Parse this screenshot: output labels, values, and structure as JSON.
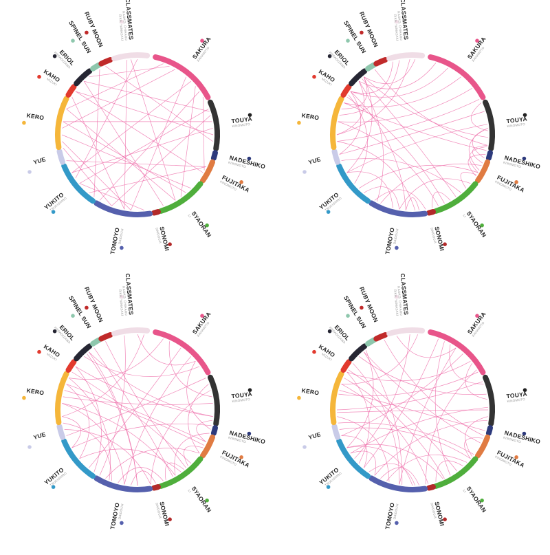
{
  "panels": [
    {
      "id": "panel-1",
      "link_style": "straight"
    },
    {
      "id": "panel-2",
      "link_style": "curved"
    },
    {
      "id": "panel-3",
      "link_style": "curved"
    },
    {
      "id": "panel-4",
      "link_style": "curved"
    }
  ],
  "link_color": "#ee6aa7",
  "characters": [
    {
      "key": "sakura",
      "name": "SAKURA",
      "sub": [
        "KINOMOTO"
      ],
      "color": "#e8558a",
      "start": -77,
      "end": -28,
      "dot_color": "#e8558a"
    },
    {
      "key": "touya",
      "name": "TOUYA",
      "sub": [
        "KINOMOTO"
      ],
      "color": "#333333",
      "start": -24,
      "end": 10,
      "dot_color": "#222222"
    },
    {
      "key": "nadeshiko",
      "name": "NADESHIKO",
      "sub": [
        "KINOMOTO"
      ],
      "color": "#2d3a7c",
      "start": 13,
      "end": 17,
      "dot_color": "#2d3a7c"
    },
    {
      "key": "fujitaka",
      "name": "FUJITAKA",
      "sub": [
        "KINOMOTO"
      ],
      "color": "#e07b42",
      "start": 20,
      "end": 35,
      "dot_color": "#e07b42"
    },
    {
      "key": "syaoran",
      "name": "SYAORAN",
      "sub": [
        "LI"
      ],
      "color": "#4fae3c",
      "start": 38,
      "end": 73,
      "dot_color": "#4fae3c"
    },
    {
      "key": "sonomi",
      "name": "SONOMI",
      "sub": [
        "DAIDOUJI"
      ],
      "color": "#b32a2a",
      "start": 75,
      "end": 78,
      "dot_color": "#b32a2a"
    },
    {
      "key": "tomoyo",
      "name": "TOMOYO",
      "sub": [
        "DAIDOUJI"
      ],
      "color": "#5560ad",
      "start": 81,
      "end": 121,
      "dot_color": "#5560ad"
    },
    {
      "key": "yukito",
      "name": "YUKITO",
      "sub": [
        "TSUKISHIRO"
      ],
      "color": "#3399c8",
      "start": 124,
      "end": 157,
      "dot_color": "#3399c8"
    },
    {
      "key": "yue",
      "name": "YUE",
      "sub": [],
      "color": "#c9cbe8",
      "start": 160,
      "end": 168,
      "dot_color": "#c9cbe8"
    },
    {
      "key": "kero",
      "name": "KERO",
      "sub": [],
      "color": "#f5b63a",
      "start": 171,
      "end": 207,
      "dot_color": "#f5b63a"
    },
    {
      "key": "kaho",
      "name": "KAHO",
      "sub": [
        "MIZUKI"
      ],
      "color": "#e23a2e",
      "start": 210,
      "end": 217,
      "dot_color": "#e23a2e"
    },
    {
      "key": "eriol",
      "name": "ERIOL",
      "sub": [
        "HIIRAGIZAWA"
      ],
      "color": "#262633",
      "start": 220,
      "end": 233,
      "dot_color": "#262633"
    },
    {
      "key": "spinel-sun",
      "name": "SPINEL SUN",
      "sub": [],
      "color": "#8ec7ad",
      "start": 236,
      "end": 241,
      "dot_color": "#8ec7ad"
    },
    {
      "key": "ruby-moon",
      "name": "RUBY MOON",
      "sub": [],
      "color": "#c02a2a",
      "start": 243,
      "end": 250,
      "dot_color": "#c02a2a"
    },
    {
      "key": "classmates",
      "name": "CLASSMATES",
      "sub": [
        "NAOKO, CHIHARU",
        "RIKA, YAMAZAKI"
      ],
      "color": "#f0dde6",
      "start": 253,
      "end": 277,
      "dot_color": "#f0dde6"
    }
  ],
  "links": [
    [
      [
        -70,
        200
      ],
      [
        -60,
        185
      ],
      [
        -45,
        150
      ],
      [
        -35,
        120
      ],
      [
        -65,
        230
      ],
      [
        -50,
        95
      ],
      [
        -40,
        55
      ],
      [
        -30,
        28
      ],
      [
        -20,
        140
      ],
      [
        -10,
        190
      ],
      [
        0,
        215
      ],
      [
        5,
        245
      ],
      [
        -15,
        110
      ],
      [
        25,
        160
      ],
      [
        45,
        180
      ],
      [
        60,
        200
      ],
      [
        70,
        225
      ],
      [
        85,
        140
      ],
      [
        100,
        210
      ],
      [
        110,
        170
      ],
      [
        130,
        25
      ],
      [
        150,
        -5
      ],
      [
        265,
        60
      ],
      [
        262,
        100
      ],
      [
        270,
        145
      ],
      [
        215,
        30
      ],
      [
        225,
        -18
      ],
      [
        190,
        50
      ],
      [
        175,
        95
      ],
      [
        240,
        125
      ]
    ],
    [
      [
        -72,
        225
      ],
      [
        -62,
        215
      ],
      [
        -50,
        205
      ],
      [
        -38,
        190
      ],
      [
        -28,
        175
      ],
      [
        -18,
        165
      ],
      [
        -8,
        150
      ],
      [
        2,
        230
      ],
      [
        8,
        240
      ],
      [
        12,
        205
      ],
      [
        24,
        115
      ],
      [
        30,
        135
      ],
      [
        40,
        100
      ],
      [
        50,
        160
      ],
      [
        55,
        228
      ],
      [
        65,
        210
      ],
      [
        70,
        190
      ],
      [
        80,
        120
      ],
      [
        88,
        175
      ],
      [
        95,
        215
      ],
      [
        105,
        150
      ],
      [
        118,
        225
      ],
      [
        140,
        212
      ],
      [
        150,
        230
      ],
      [
        165,
        215
      ],
      [
        180,
        225
      ],
      [
        200,
        230
      ],
      [
        255,
        215
      ],
      [
        260,
        195
      ],
      [
        268,
        180
      ],
      [
        272,
        230
      ],
      [
        15,
        33
      ],
      [
        22,
        8
      ],
      [
        28,
        -5
      ],
      [
        32,
        45
      ],
      [
        -25,
        -3
      ],
      [
        -5,
        18
      ],
      [
        9,
        30
      ],
      [
        60,
        75
      ],
      [
        85,
        95
      ],
      [
        100,
        130
      ]
    ],
    [
      [
        -70,
        205
      ],
      [
        -55,
        130
      ],
      [
        -45,
        100
      ],
      [
        -35,
        225
      ],
      [
        -25,
        160
      ],
      [
        -15,
        80
      ],
      [
        -5,
        190
      ],
      [
        5,
        230
      ],
      [
        12,
        150
      ],
      [
        18,
        60
      ],
      [
        28,
        195
      ],
      [
        35,
        115
      ],
      [
        45,
        210
      ],
      [
        55,
        140
      ],
      [
        62,
        235
      ],
      [
        70,
        105
      ],
      [
        80,
        165
      ],
      [
        90,
        228
      ],
      [
        100,
        185
      ],
      [
        112,
        205
      ],
      [
        125,
        215
      ],
      [
        140,
        200
      ],
      [
        150,
        175
      ],
      [
        170,
        110
      ],
      [
        185,
        60
      ],
      [
        200,
        25
      ],
      [
        215,
        5
      ],
      [
        230,
        90
      ],
      [
        245,
        50
      ],
      [
        260,
        120
      ],
      [
        270,
        -40
      ],
      [
        275,
        175
      ],
      [
        -65,
        -10
      ],
      [
        -40,
        15
      ],
      [
        -20,
        35
      ],
      [
        8,
        25
      ],
      [
        30,
        48
      ],
      [
        52,
        68
      ],
      [
        76,
        95
      ]
    ],
    [
      [
        -70,
        130
      ],
      [
        -65,
        60
      ],
      [
        -55,
        100
      ],
      [
        -48,
        160
      ],
      [
        -40,
        210
      ],
      [
        -32,
        80
      ],
      [
        -22,
        180
      ],
      [
        -12,
        225
      ],
      [
        -2,
        145
      ],
      [
        8,
        120
      ],
      [
        16,
        195
      ],
      [
        26,
        230
      ],
      [
        36,
        170
      ],
      [
        44,
        110
      ],
      [
        54,
        212
      ],
      [
        66,
        150
      ],
      [
        78,
        200
      ],
      [
        88,
        125
      ],
      [
        98,
        230
      ],
      [
        108,
        175
      ],
      [
        120,
        145
      ],
      [
        135,
        210
      ],
      [
        150,
        90
      ],
      [
        165,
        40
      ],
      [
        178,
        0
      ],
      [
        192,
        -30
      ],
      [
        205,
        65
      ],
      [
        218,
        100
      ],
      [
        232,
        150
      ],
      [
        248,
        20
      ],
      [
        258,
        -55
      ],
      [
        268,
        140
      ],
      [
        274,
        200
      ],
      [
        -60,
        -20
      ],
      [
        -38,
        -8
      ],
      [
        5,
        38
      ],
      [
        22,
        40
      ],
      [
        48,
        72
      ],
      [
        85,
        115
      ],
      [
        130,
        160
      ]
    ]
  ]
}
